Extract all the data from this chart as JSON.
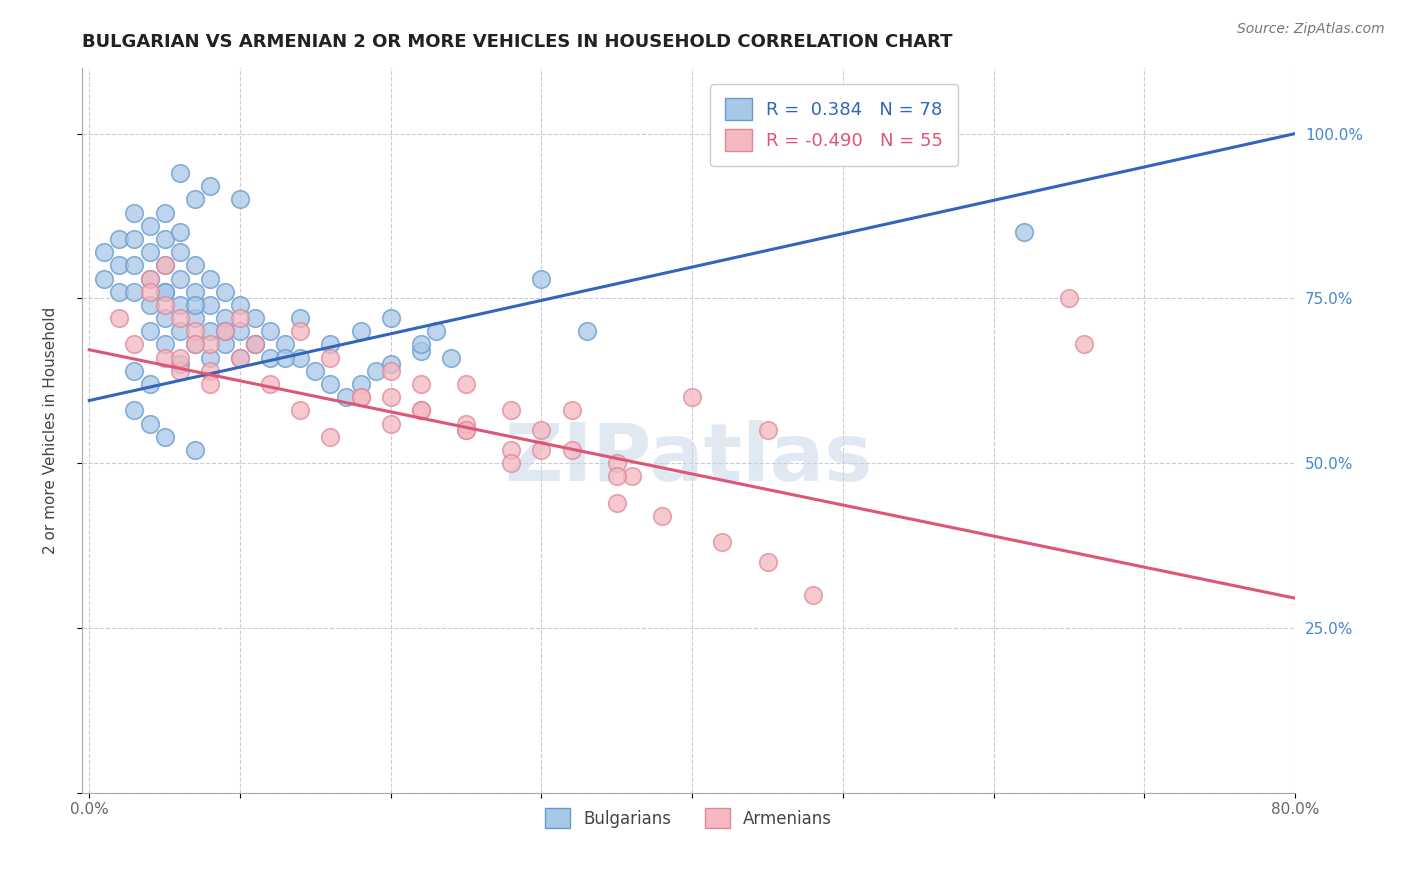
{
  "title": "BULGARIAN VS ARMENIAN 2 OR MORE VEHICLES IN HOUSEHOLD CORRELATION CHART",
  "source": "Source: ZipAtlas.com",
  "ylabel": "2 or more Vehicles in Household",
  "x_ticks": [
    0.0,
    0.1,
    0.2,
    0.3,
    0.4,
    0.5,
    0.6,
    0.7,
    0.8
  ],
  "x_tick_labels": [
    "0.0%",
    "",
    "",
    "",
    "",
    "",
    "",
    "",
    "80.0%"
  ],
  "y_ticks": [
    0.0,
    0.25,
    0.5,
    0.75,
    1.0
  ],
  "y_tick_labels": [
    "",
    "25.0%",
    "50.0%",
    "75.0%",
    "100.0%"
  ],
  "legend_R_blue": "0.384",
  "legend_N_blue": "78",
  "legend_R_pink": "-0.490",
  "legend_N_pink": "55",
  "blue_color": "#a8c8e8",
  "blue_edge_color": "#6699cc",
  "pink_color": "#f4b8c0",
  "pink_edge_color": "#dd8899",
  "blue_line_color": "#3366bb",
  "pink_line_color": "#dd5577",
  "watermark": "ZIPatlas",
  "blue_scatter_x": [
    0.01,
    0.01,
    0.02,
    0.02,
    0.02,
    0.03,
    0.03,
    0.03,
    0.03,
    0.04,
    0.04,
    0.04,
    0.04,
    0.04,
    0.05,
    0.05,
    0.05,
    0.05,
    0.05,
    0.06,
    0.06,
    0.06,
    0.06,
    0.07,
    0.07,
    0.07,
    0.07,
    0.08,
    0.08,
    0.08,
    0.08,
    0.09,
    0.09,
    0.09,
    0.1,
    0.1,
    0.1,
    0.11,
    0.11,
    0.12,
    0.12,
    0.13,
    0.14,
    0.15,
    0.16,
    0.17,
    0.18,
    0.19,
    0.2,
    0.22,
    0.23,
    0.14,
    0.16,
    0.18,
    0.2,
    0.22,
    0.24,
    0.07,
    0.09,
    0.11,
    0.13,
    0.03,
    0.04,
    0.05,
    0.06,
    0.05,
    0.06,
    0.07,
    0.03,
    0.04,
    0.05,
    0.07,
    0.3,
    0.62,
    0.06,
    0.08,
    0.1,
    0.33
  ],
  "blue_scatter_y": [
    0.82,
    0.78,
    0.84,
    0.8,
    0.76,
    0.88,
    0.84,
    0.8,
    0.76,
    0.86,
    0.82,
    0.78,
    0.74,
    0.7,
    0.84,
    0.8,
    0.76,
    0.72,
    0.68,
    0.82,
    0.78,
    0.74,
    0.7,
    0.8,
    0.76,
    0.72,
    0.68,
    0.78,
    0.74,
    0.7,
    0.66,
    0.76,
    0.72,
    0.68,
    0.74,
    0.7,
    0.66,
    0.72,
    0.68,
    0.7,
    0.66,
    0.68,
    0.66,
    0.64,
    0.62,
    0.6,
    0.62,
    0.64,
    0.65,
    0.67,
    0.7,
    0.72,
    0.68,
    0.7,
    0.72,
    0.68,
    0.66,
    0.74,
    0.7,
    0.68,
    0.66,
    0.64,
    0.62,
    0.76,
    0.65,
    0.88,
    0.85,
    0.9,
    0.58,
    0.56,
    0.54,
    0.52,
    0.78,
    0.85,
    0.94,
    0.92,
    0.9,
    0.7
  ],
  "pink_scatter_x": [
    0.02,
    0.03,
    0.04,
    0.05,
    0.06,
    0.07,
    0.08,
    0.09,
    0.1,
    0.11,
    0.05,
    0.06,
    0.07,
    0.08,
    0.1,
    0.12,
    0.14,
    0.16,
    0.18,
    0.2,
    0.22,
    0.25,
    0.28,
    0.3,
    0.32,
    0.35,
    0.25,
    0.28,
    0.32,
    0.36,
    0.14,
    0.16,
    0.18,
    0.2,
    0.22,
    0.25,
    0.28,
    0.2,
    0.22,
    0.25,
    0.3,
    0.35,
    0.4,
    0.45,
    0.65,
    0.66,
    0.04,
    0.05,
    0.06,
    0.08,
    0.35,
    0.38,
    0.42,
    0.45,
    0.48
  ],
  "pink_scatter_y": [
    0.72,
    0.68,
    0.78,
    0.66,
    0.64,
    0.7,
    0.68,
    0.7,
    0.72,
    0.68,
    0.74,
    0.72,
    0.68,
    0.64,
    0.66,
    0.62,
    0.58,
    0.54,
    0.6,
    0.56,
    0.62,
    0.55,
    0.52,
    0.55,
    0.58,
    0.5,
    0.62,
    0.58,
    0.52,
    0.48,
    0.7,
    0.66,
    0.6,
    0.64,
    0.58,
    0.56,
    0.5,
    0.6,
    0.58,
    0.55,
    0.52,
    0.48,
    0.6,
    0.55,
    0.75,
    0.68,
    0.76,
    0.8,
    0.66,
    0.62,
    0.44,
    0.42,
    0.38,
    0.35,
    0.3
  ],
  "blue_trendline_x": [
    0.0,
    0.8
  ],
  "blue_trendline_y": [
    0.595,
    1.0
  ],
  "pink_trendline_x": [
    0.0,
    0.8
  ],
  "pink_trendline_y": [
    0.672,
    0.295
  ],
  "xlim": [
    -0.005,
    0.8
  ],
  "ylim": [
    0.0,
    1.1
  ],
  "title_fontsize": 13,
  "axis_fontsize": 11,
  "tick_fontsize": 11,
  "source_fontsize": 10
}
